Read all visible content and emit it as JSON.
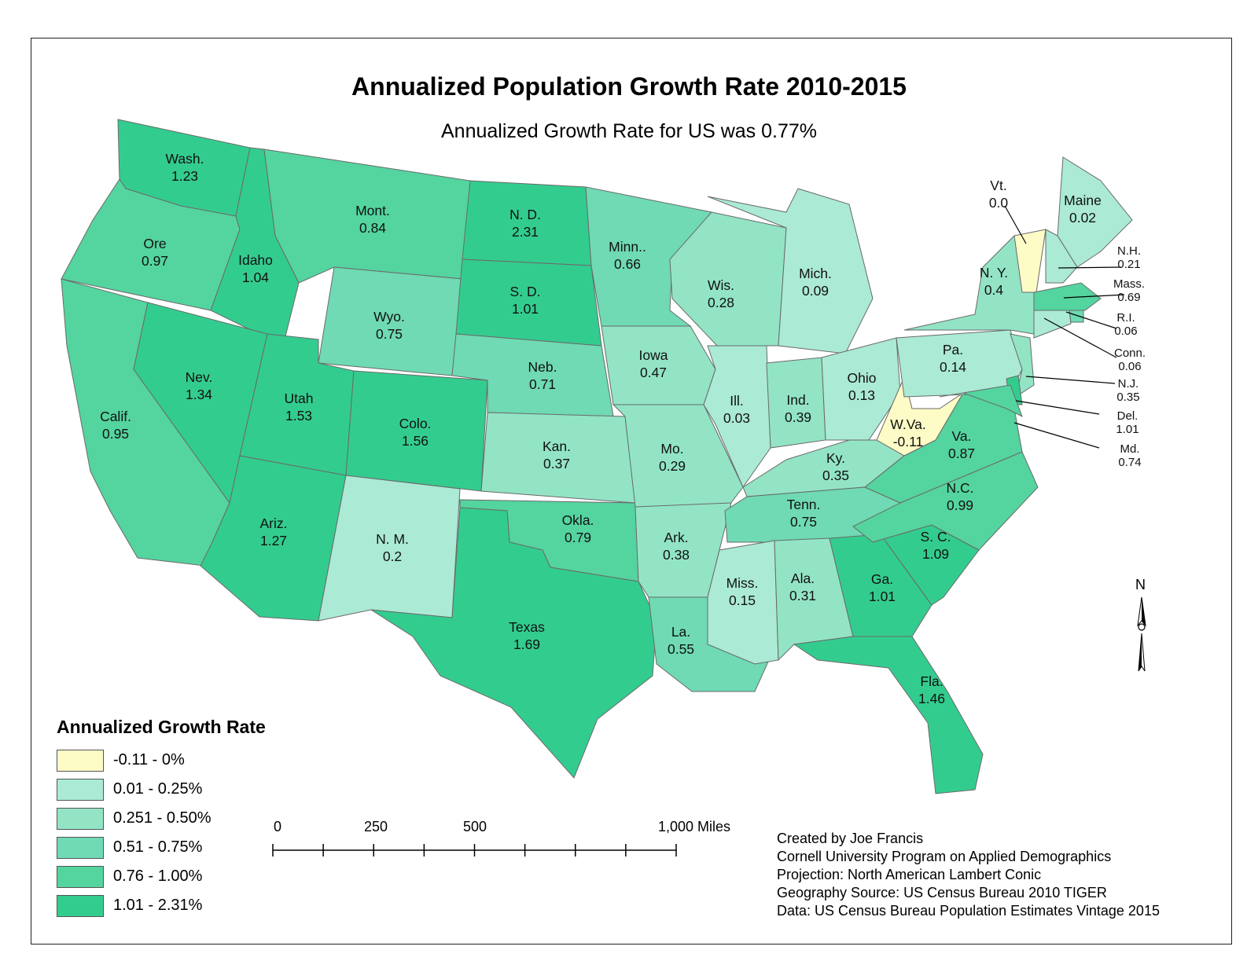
{
  "title": "Annualized Population Growth Rate 2010-2015",
  "subtitle": "Annualized Growth Rate for US was 0.77%",
  "colors": {
    "c0": "#fdfbc6",
    "c1": "#abead5",
    "c2": "#92e4c5",
    "c3": "#6fdab3",
    "c4": "#54d49f",
    "c5": "#33cc8f",
    "border": "#6a6a6a"
  },
  "legend": {
    "title": "Annualized Growth Rate",
    "items": [
      {
        "label": "-0.11 - 0%",
        "color": "#fdfbc6"
      },
      {
        "label": "0.01 - 0.25%",
        "color": "#abead5"
      },
      {
        "label": "0.251 - 0.50%",
        "color": "#92e4c5"
      },
      {
        "label": "0.51 - 0.75%",
        "color": "#6fdab3"
      },
      {
        "label": "0.76 - 1.00%",
        "color": "#54d49f"
      },
      {
        "label": "1.01 - 2.31%",
        "color": "#33cc8f"
      }
    ]
  },
  "states": [
    {
      "abbr": "Wash.",
      "value": "1.23"
    },
    {
      "abbr": "Ore",
      "value": "0.97"
    },
    {
      "abbr": "Calif.",
      "value": "0.95"
    },
    {
      "abbr": "Idaho",
      "value": "1.04"
    },
    {
      "abbr": "Nev.",
      "value": "1.34"
    },
    {
      "abbr": "Mont.",
      "value": "0.84"
    },
    {
      "abbr": "Wyo.",
      "value": "0.75"
    },
    {
      "abbr": "Utah",
      "value": "1.53"
    },
    {
      "abbr": "Ariz.",
      "value": "1.27"
    },
    {
      "abbr": "Colo.",
      "value": "1.56"
    },
    {
      "abbr": "N. M.",
      "value": "0.2"
    },
    {
      "abbr": "N. D.",
      "value": "2.31"
    },
    {
      "abbr": "S. D.",
      "value": "1.01"
    },
    {
      "abbr": "Neb.",
      "value": "0.71"
    },
    {
      "abbr": "Kan.",
      "value": "0.37"
    },
    {
      "abbr": "Okla.",
      "value": "0.79"
    },
    {
      "abbr": "Texas",
      "value": "1.69"
    },
    {
      "abbr": "Minn..",
      "value": "0.66"
    },
    {
      "abbr": "Iowa",
      "value": "0.47"
    },
    {
      "abbr": "Mo.",
      "value": "0.29"
    },
    {
      "abbr": "Ark.",
      "value": "0.38"
    },
    {
      "abbr": "La.",
      "value": "0.55"
    },
    {
      "abbr": "Wis.",
      "value": "0.28"
    },
    {
      "abbr": "Ill.",
      "value": "0.03"
    },
    {
      "abbr": "Mich.",
      "value": "0.09"
    },
    {
      "abbr": "Ind.",
      "value": "0.39"
    },
    {
      "abbr": "Ohio",
      "value": "0.13"
    },
    {
      "abbr": "Ky.",
      "value": "0.35"
    },
    {
      "abbr": "Tenn.",
      "value": "0.75"
    },
    {
      "abbr": "Miss.",
      "value": "0.15"
    },
    {
      "abbr": "Ala.",
      "value": "0.31"
    },
    {
      "abbr": "Ga.",
      "value": "1.01"
    },
    {
      "abbr": "Fla.",
      "value": "1.46"
    },
    {
      "abbr": "S. C.",
      "value": "1.09"
    },
    {
      "abbr": "N.C.",
      "value": "0.99"
    },
    {
      "abbr": "Va.",
      "value": "0.87"
    },
    {
      "abbr": "W.Va.",
      "value": "-0.11"
    },
    {
      "abbr": "Pa.",
      "value": "0.14"
    },
    {
      "abbr": "N. Y.",
      "value": "0.4"
    },
    {
      "abbr": "Vt.",
      "value": "0.0"
    },
    {
      "abbr": "Maine",
      "value": "0.02"
    },
    {
      "abbr": "N.H.",
      "value": "0.21"
    },
    {
      "abbr": "Mass.",
      "value": "0.69"
    },
    {
      "abbr": "R.I.",
      "value": "0.06"
    },
    {
      "abbr": "Conn.",
      "value": "0.06"
    },
    {
      "abbr": "N.J.",
      "value": "0.35"
    },
    {
      "abbr": "Del.",
      "value": "1.01"
    },
    {
      "abbr": "Md.",
      "value": "0.74"
    }
  ],
  "scale_bar": {
    "labels": [
      "0",
      "250",
      "500",
      "1,000 Miles"
    ]
  },
  "north_label": "N",
  "credits": [
    "Created by Joe Francis",
    "Cornell University Program on Applied Demographics",
    "Projection: North American Lambert Conic",
    "Geography Source: US Census Bureau 2010 TIGER",
    "Data: US Census Bureau Population Estimates Vintage 2015"
  ]
}
